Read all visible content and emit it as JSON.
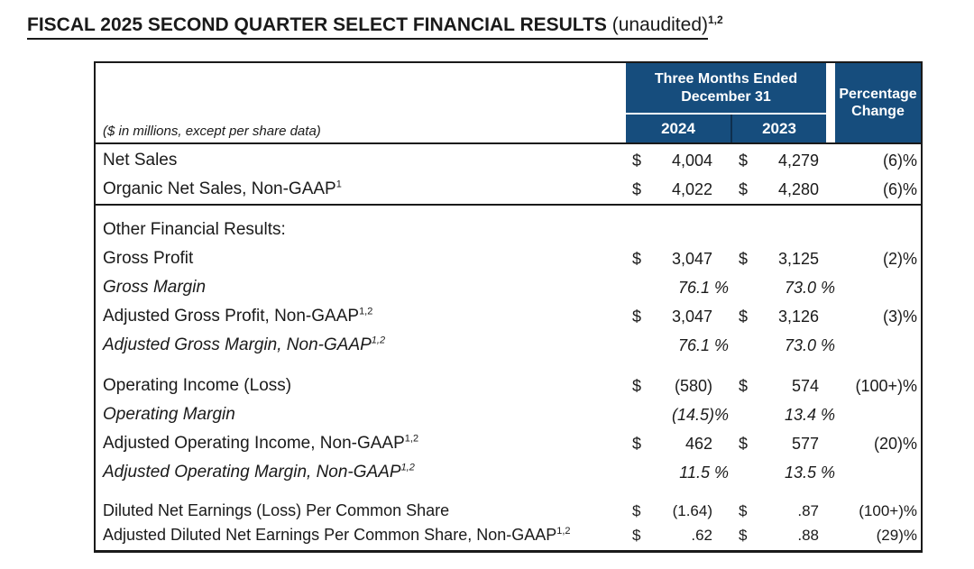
{
  "title": {
    "main": "FISCAL 2025 SECOND QUARTER SELECT FINANCIAL RESULTS",
    "suffix": " (unaudited)",
    "superscript": "1,2"
  },
  "colors": {
    "header_blue": "#164D7D",
    "border_black": "#1A1A1A",
    "header_text_white": "#FFFFFF"
  },
  "table": {
    "units_note": "($ in millions, except per share data)",
    "period_header": "Three Months Ended December 31",
    "col_2024": "2024",
    "col_2023": "2023",
    "pct_header": "Percentage Change",
    "rows": [
      {
        "type": "data",
        "label": "Net Sales",
        "cur1": "$",
        "v1": "4,004",
        "cur2": "$",
        "v2": "4,279",
        "pct": "(6)%"
      },
      {
        "type": "data",
        "label": "Organic Net Sales, Non-GAAP",
        "sup": "1",
        "cur1": "$",
        "v1": "4,022",
        "cur2": "$",
        "v2": "4,280",
        "pct": "(6)%"
      },
      {
        "type": "divider"
      },
      {
        "type": "section",
        "label": "Other Financial Results:"
      },
      {
        "type": "data",
        "label": "Gross Profit",
        "cur1": "$",
        "v1": "3,047",
        "cur2": "$",
        "v2": "3,125",
        "pct": "(2)%"
      },
      {
        "type": "margin",
        "label": "Gross Margin",
        "m1": "76.1 %",
        "m2": "73.0 %"
      },
      {
        "type": "data",
        "label": "Adjusted Gross Profit, Non-GAAP",
        "sup": "1,2",
        "cur1": "$",
        "v1": "3,047",
        "cur2": "$",
        "v2": "3,126",
        "pct": "(3)%"
      },
      {
        "type": "margin",
        "label": "Adjusted Gross Margin, Non-GAAP",
        "sup": "1,2",
        "m1": "76.1 %",
        "m2": "73.0 %"
      },
      {
        "type": "gap"
      },
      {
        "type": "data",
        "label": "Operating Income (Loss)",
        "cur1": "$",
        "v1": "(580)",
        "cur2": "$",
        "v2": "574",
        "pct": "(100+)%"
      },
      {
        "type": "margin",
        "label": "Operating Margin",
        "m1": "(14.5)%",
        "m2": "13.4 %"
      },
      {
        "type": "data",
        "label": "Adjusted Operating Income, Non-GAAP",
        "sup": "1,2",
        "cur1": "$",
        "v1": "462",
        "cur2": "$",
        "v2": "577",
        "pct": "(20)%"
      },
      {
        "type": "margin",
        "label": "Adjusted Operating Margin, Non-GAAP",
        "sup": "1,2",
        "m1": "11.5 %",
        "m2": "13.5 %"
      },
      {
        "type": "gap"
      },
      {
        "type": "data",
        "label": "Diluted Net Earnings (Loss) Per Common Share",
        "cur1": "$",
        "v1": "(1.64)",
        "cur2": "$",
        "v2": ".87",
        "pct": "(100+)%"
      },
      {
        "type": "data",
        "label": "Adjusted Diluted Net Earnings Per Common Share, Non-GAAP",
        "sup": "1,2",
        "cur1": "$",
        "v1": ".62",
        "cur2": "$",
        "v2": ".88",
        "pct": "(29)%"
      }
    ]
  }
}
